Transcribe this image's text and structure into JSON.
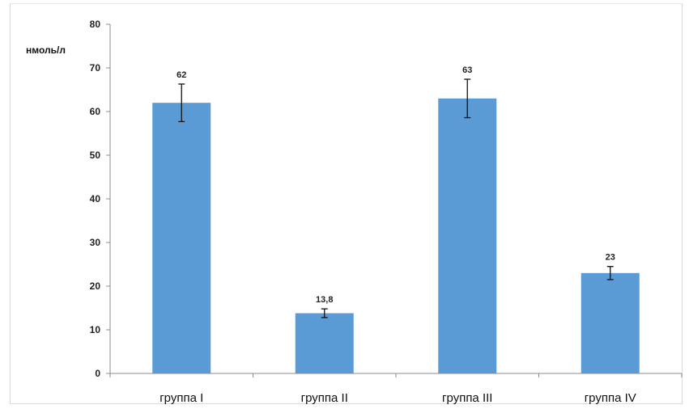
{
  "chart_data": {
    "type": "bar",
    "title": "",
    "xlabel": "",
    "ylabel": "нмоль/л",
    "ylim": [
      0,
      80
    ],
    "yticks": [
      0,
      10,
      20,
      30,
      40,
      50,
      60,
      70,
      80
    ],
    "grid": false,
    "legend": "none",
    "bar_color": "#5b9bd5",
    "categories": [
      "группа I",
      "группа II",
      "группа III",
      "группа IV"
    ],
    "values": [
      62,
      13.8,
      63,
      23
    ],
    "value_labels": [
      "62",
      "13,8",
      "63",
      "23"
    ],
    "error": [
      4.3,
      1.0,
      4.4,
      1.5
    ]
  }
}
